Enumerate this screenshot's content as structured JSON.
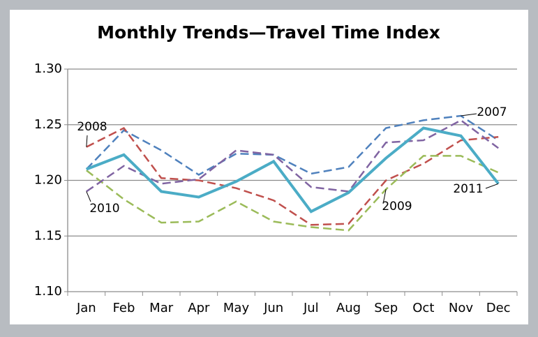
{
  "chart_data": {
    "type": "line",
    "title": "Monthly Trends—Travel Time Index",
    "categories": [
      "Jan",
      "Feb",
      "Mar",
      "Apr",
      "May",
      "Jun",
      "Jul",
      "Aug",
      "Sep",
      "Oct",
      "Nov",
      "Dec"
    ],
    "series": [
      {
        "name": "2007",
        "color": "#4f81bd",
        "dashed": true,
        "values": [
          1.21,
          1.245,
          1.227,
          1.205,
          1.224,
          1.223,
          1.206,
          1.212,
          1.247,
          1.254,
          1.258,
          1.236
        ]
      },
      {
        "name": "2008",
        "color": "#c0504d",
        "dashed": true,
        "values": [
          1.23,
          1.247,
          1.202,
          1.2,
          1.193,
          1.182,
          1.16,
          1.161,
          1.2,
          1.215,
          1.236,
          1.239
        ]
      },
      {
        "name": "2009",
        "color": "#9bbb59",
        "dashed": true,
        "values": [
          1.209,
          1.183,
          1.162,
          1.163,
          1.181,
          1.163,
          1.158,
          1.155,
          1.192,
          1.222,
          1.222,
          1.207
        ]
      },
      {
        "name": "2010",
        "color": "#8064a2",
        "dashed": true,
        "values": [
          1.19,
          1.213,
          1.197,
          1.201,
          1.227,
          1.223,
          1.194,
          1.19,
          1.234,
          1.236,
          1.254,
          1.229
        ]
      },
      {
        "name": "2011",
        "color": "#4bacc6",
        "dashed": false,
        "values": [
          1.21,
          1.223,
          1.19,
          1.185,
          1.199,
          1.217,
          1.172,
          1.189,
          1.22,
          1.247,
          1.24,
          1.197
        ]
      }
    ],
    "ylim": [
      1.1,
      1.3
    ],
    "yticks": [
      {
        "value": 1.1,
        "label": "1.10"
      },
      1.15,
      {
        "value": 1.2,
        "label": "1.20"
      },
      1.25,
      {
        "value": 1.3,
        "label": "1.30"
      }
    ],
    "grid": true
  }
}
